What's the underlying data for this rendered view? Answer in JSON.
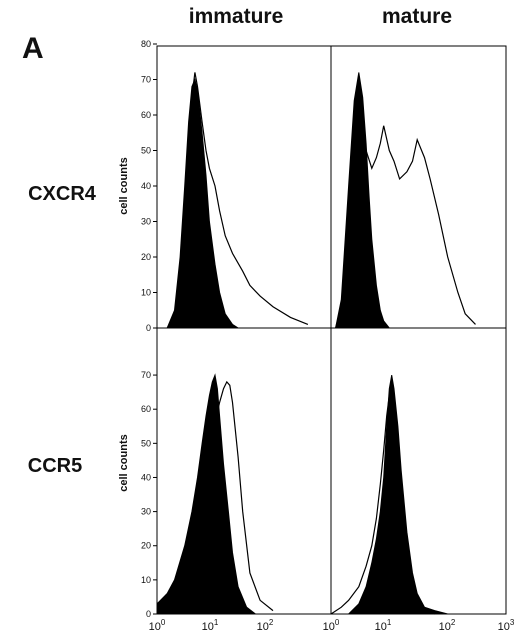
{
  "figure": {
    "panel_letter": "A",
    "column_titles": [
      "immature",
      "mature"
    ],
    "row_labels": [
      "CXCR4",
      "CCR5"
    ],
    "ylabel": "cell counts"
  },
  "colors": {
    "fill": "#000000",
    "line": "#000000",
    "background": "#ffffff"
  },
  "chart_data": [
    {
      "type": "area",
      "row": "CXCR4",
      "column": "immature",
      "xscale": "log",
      "xlim": [
        1,
        1000
      ],
      "ylim": [
        0,
        80
      ],
      "yticks": [
        0,
        10,
        20,
        30,
        40,
        50,
        60,
        70,
        80
      ],
      "ylabel": "cell counts",
      "series": [
        {
          "style": "filled",
          "x": [
            1.5,
            2,
            2.5,
            3,
            3.5,
            4,
            4.5,
            5,
            6,
            7,
            8,
            10,
            12,
            15,
            20,
            25
          ],
          "values": [
            0,
            5,
            20,
            40,
            58,
            68,
            70,
            67,
            55,
            43,
            30,
            18,
            10,
            4,
            1,
            0
          ]
        },
        {
          "style": "outline",
          "x": [
            1.5,
            2,
            2.5,
            3,
            3.5,
            4,
            4.5,
            5,
            6,
            7,
            8,
            10,
            12,
            15,
            20,
            30,
            40,
            60,
            100,
            200,
            400
          ],
          "values": [
            0,
            3,
            14,
            32,
            52,
            65,
            72,
            68,
            58,
            50,
            45,
            40,
            33,
            26,
            21,
            16,
            12,
            9,
            6,
            3,
            1
          ]
        }
      ]
    },
    {
      "type": "area",
      "row": "CXCR4",
      "column": "mature",
      "xscale": "log",
      "xlim": [
        1,
        1000
      ],
      "ylim": [
        0,
        80
      ],
      "yticks": [
        0,
        10,
        20,
        30,
        40,
        50,
        60,
        70,
        80
      ],
      "series": [
        {
          "style": "filled",
          "x": [
            1.2,
            1.5,
            2,
            2.5,
            3,
            3.5,
            4,
            4.5,
            5,
            6,
            7,
            8,
            10
          ],
          "values": [
            0,
            8,
            40,
            64,
            72,
            65,
            52,
            37,
            25,
            12,
            5,
            2,
            0
          ]
        },
        {
          "style": "outline",
          "x": [
            1.2,
            1.5,
            2,
            2.5,
            3,
            3.5,
            4,
            5,
            6,
            7,
            8,
            10,
            12,
            15,
            20,
            25,
            30,
            40,
            50,
            70,
            100,
            150,
            200,
            300
          ],
          "values": [
            0,
            6,
            32,
            58,
            66,
            60,
            50,
            45,
            48,
            52,
            57,
            50,
            47,
            42,
            44,
            47,
            53,
            48,
            42,
            32,
            20,
            10,
            4,
            1
          ]
        }
      ]
    },
    {
      "type": "area",
      "row": "CCR5",
      "column": "immature",
      "xscale": "log",
      "xlim": [
        1,
        1000
      ],
      "ylim": [
        0,
        75
      ],
      "yticks": [
        0,
        10,
        20,
        30,
        40,
        50,
        60,
        70
      ],
      "ylabel": "cell counts",
      "series": [
        {
          "style": "filled",
          "x": [
            1,
            1.5,
            2,
            3,
            4,
            5,
            6,
            7,
            8,
            9,
            10,
            11,
            12,
            14,
            17,
            20,
            25,
            35,
            50
          ],
          "values": [
            3,
            6,
            10,
            20,
            30,
            40,
            50,
            58,
            64,
            68,
            70,
            66,
            58,
            44,
            30,
            18,
            8,
            2,
            0
          ]
        },
        {
          "style": "outline",
          "x": [
            1,
            1.5,
            2,
            3,
            4,
            5,
            6,
            7,
            8,
            10,
            12,
            14,
            16,
            18,
            20,
            25,
            30,
            40,
            60,
            100
          ],
          "values": [
            2,
            4,
            7,
            14,
            22,
            30,
            37,
            44,
            50,
            56,
            62,
            66,
            68,
            67,
            62,
            46,
            30,
            12,
            4,
            1
          ]
        }
      ]
    },
    {
      "type": "area",
      "row": "CCR5",
      "column": "mature",
      "xscale": "log",
      "xlim": [
        1,
        1000
      ],
      "ylim": [
        0,
        75
      ],
      "yticks": [
        0,
        10,
        20,
        30,
        40,
        50,
        60,
        70
      ],
      "series": [
        {
          "style": "filled",
          "x": [
            2,
            3,
            4,
            5,
            6,
            7,
            8,
            9,
            10,
            11,
            12,
            14,
            16,
            20,
            25,
            30,
            40,
            60,
            100
          ],
          "values": [
            0,
            3,
            8,
            15,
            22,
            30,
            40,
            55,
            66,
            70,
            66,
            55,
            42,
            24,
            12,
            6,
            2,
            1,
            0
          ]
        },
        {
          "style": "outline",
          "x": [
            1,
            1.5,
            2,
            3,
            4,
            5,
            6,
            7,
            8,
            9,
            10,
            11,
            12,
            14,
            16,
            20,
            25,
            30,
            40,
            60
          ],
          "values": [
            0,
            2,
            4,
            8,
            14,
            20,
            28,
            38,
            48,
            58,
            64,
            67,
            62,
            50,
            38,
            22,
            10,
            5,
            1,
            0
          ]
        }
      ]
    }
  ],
  "xaxis": {
    "ticks": [
      {
        "base": "10",
        "exp": "0"
      },
      {
        "base": "10",
        "exp": "1"
      },
      {
        "base": "10",
        "exp": "2"
      },
      {
        "base": "10",
        "exp": "3"
      }
    ]
  }
}
